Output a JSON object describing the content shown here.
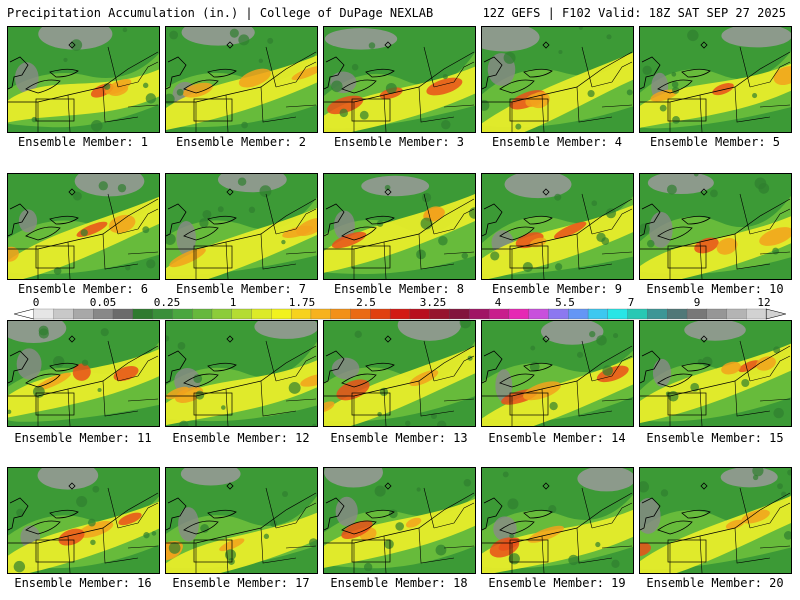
{
  "header": {
    "left_title": "Precipitation Accumulation (in.) | College of DuPage NEXLAB",
    "right_title": "12Z GEFS | F102 Valid: 18Z SAT SEP 27 2025"
  },
  "panels": [
    {
      "label": "Ensemble Member: 1"
    },
    {
      "label": "Ensemble Member: 2"
    },
    {
      "label": "Ensemble Member: 3"
    },
    {
      "label": "Ensemble Member: 4"
    },
    {
      "label": "Ensemble Member: 5"
    },
    {
      "label": "Ensemble Member: 6"
    },
    {
      "label": "Ensemble Member: 7"
    },
    {
      "label": "Ensemble Member: 8"
    },
    {
      "label": "Ensemble Member: 9"
    },
    {
      "label": "Ensemble Member: 10"
    },
    {
      "label": "Ensemble Member: 11"
    },
    {
      "label": "Ensemble Member: 12"
    },
    {
      "label": "Ensemble Member: 13"
    },
    {
      "label": "Ensemble Member: 14"
    },
    {
      "label": "Ensemble Member: 15"
    },
    {
      "label": "Ensemble Member: 16"
    },
    {
      "label": "Ensemble Member: 17"
    },
    {
      "label": "Ensemble Member: 18"
    },
    {
      "label": "Ensemble Member: 19"
    },
    {
      "label": "Ensemble Member: 20"
    }
  ],
  "colorbar": {
    "tick_labels": [
      "0",
      "0.05",
      "0.25",
      "1",
      "1.75",
      "2.5",
      "3.25",
      "4",
      "5.5",
      "7",
      "9",
      "12"
    ],
    "colors": [
      "#e6e6e6",
      "#c8c8c8",
      "#a8a8a8",
      "#888888",
      "#6b6b6b",
      "#2f7a2f",
      "#3a8f3a",
      "#4aa63f",
      "#66b83c",
      "#8ccc3a",
      "#b4dc32",
      "#dcea28",
      "#f2f21e",
      "#f7d21e",
      "#f7b21e",
      "#f29018",
      "#ea6a14",
      "#e0400f",
      "#d21a14",
      "#b80f1e",
      "#96142d",
      "#82143c",
      "#a01464",
      "#c81e8c",
      "#e628b4",
      "#c850dc",
      "#8c78f0",
      "#6496f5",
      "#3cc8f0",
      "#28e6e6",
      "#28c8b4",
      "#3c9696",
      "#507878",
      "#787878",
      "#969696",
      "#b4b4b4",
      "#d2d2d2"
    ]
  }
}
